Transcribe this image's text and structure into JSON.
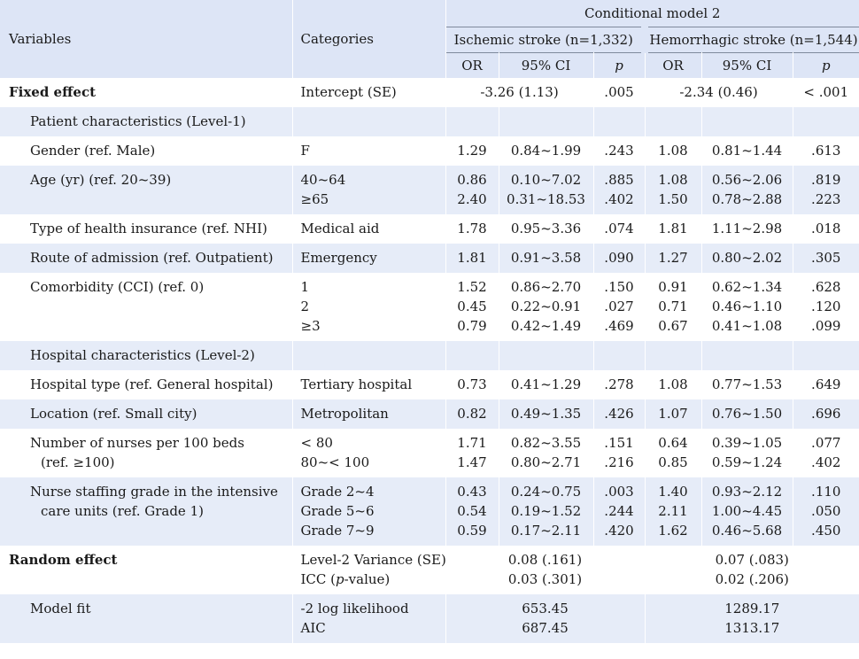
{
  "header": {
    "model_title": "Conditional model 2",
    "col_variables": "Variables",
    "col_categories": "Categories",
    "group_ischemic": "Ischemic stroke (n=1,332)",
    "group_hemorrhagic": "Hemorrhagic stroke (n=1,544)",
    "or": "OR",
    "ci": "95% CI",
    "p": "p"
  },
  "rows": [
    {
      "bg": "wht",
      "var": [
        "Fixed effect"
      ],
      "bold": true,
      "cat": [
        "Intercept (SE)"
      ],
      "is_merged": "-3.26 (1.13)",
      "is_p": [
        ".005"
      ],
      "hm_merged": "-2.34 (0.46)",
      "hm_p": [
        "< .001"
      ]
    },
    {
      "bg": "alt",
      "var": [
        "Patient characteristics (Level-1)"
      ],
      "indent": true,
      "cat": [],
      "is_or": [],
      "is_ci": [],
      "is_p": [],
      "hm_or": [],
      "hm_ci": [],
      "hm_p": []
    },
    {
      "bg": "wht",
      "var": [
        "Gender (ref. Male)"
      ],
      "indent": true,
      "cat": [
        "F"
      ],
      "is_or": [
        "1.29"
      ],
      "is_ci": [
        "0.84~1.99"
      ],
      "is_p": [
        ".243"
      ],
      "hm_or": [
        "1.08"
      ],
      "hm_ci": [
        "0.81~1.44"
      ],
      "hm_p": [
        ".613"
      ]
    },
    {
      "bg": "alt",
      "var": [
        "Age (yr) (ref. 20~39)"
      ],
      "indent": true,
      "cat": [
        "40~64",
        "≥65"
      ],
      "is_or": [
        "0.86",
        "2.40"
      ],
      "is_ci": [
        "0.10~7.02",
        "0.31~18.53"
      ],
      "is_p": [
        ".885",
        ".402"
      ],
      "hm_or": [
        "1.08",
        "1.50"
      ],
      "hm_ci": [
        "0.56~2.06",
        "0.78~2.88"
      ],
      "hm_p": [
        ".819",
        ".223"
      ]
    },
    {
      "bg": "wht",
      "var": [
        "Type of health insurance (ref. NHI)"
      ],
      "indent": true,
      "cat": [
        "Medical aid"
      ],
      "is_or": [
        "1.78"
      ],
      "is_ci": [
        "0.95~3.36"
      ],
      "is_p": [
        ".074"
      ],
      "hm_or": [
        "1.81"
      ],
      "hm_ci": [
        "1.11~2.98"
      ],
      "hm_p": [
        ".018"
      ]
    },
    {
      "bg": "alt",
      "var": [
        "Route of admission (ref. Outpatient)"
      ],
      "indent": true,
      "cat": [
        "Emergency"
      ],
      "is_or": [
        "1.81"
      ],
      "is_ci": [
        "0.91~3.58"
      ],
      "is_p": [
        ".090"
      ],
      "hm_or": [
        "1.27"
      ],
      "hm_ci": [
        "0.80~2.02"
      ],
      "hm_p": [
        ".305"
      ]
    },
    {
      "bg": "wht",
      "var": [
        "Comorbidity (CCI) (ref. 0)"
      ],
      "indent": true,
      "cat": [
        "1",
        "2",
        "≥3"
      ],
      "is_or": [
        "1.52",
        "0.45",
        "0.79"
      ],
      "is_ci": [
        "0.86~2.70",
        "0.22~0.91",
        "0.42~1.49"
      ],
      "is_p": [
        ".150",
        ".027",
        ".469"
      ],
      "hm_or": [
        "0.91",
        "0.71",
        "0.67"
      ],
      "hm_ci": [
        "0.62~1.34",
        "0.46~1.10",
        "0.41~1.08"
      ],
      "hm_p": [
        ".628",
        ".120",
        ".099"
      ]
    },
    {
      "bg": "alt",
      "var": [
        "Hospital characteristics (Level-2)"
      ],
      "indent": true,
      "cat": [],
      "is_or": [],
      "is_ci": [],
      "is_p": [],
      "hm_or": [],
      "hm_ci": [],
      "hm_p": []
    },
    {
      "bg": "wht",
      "var": [
        "Hospital type (ref. General hospital)"
      ],
      "indent": true,
      "cat": [
        "Tertiary hospital"
      ],
      "is_or": [
        "0.73"
      ],
      "is_ci": [
        "0.41~1.29"
      ],
      "is_p": [
        ".278"
      ],
      "hm_or": [
        "1.08"
      ],
      "hm_ci": [
        "0.77~1.53"
      ],
      "hm_p": [
        ".649"
      ]
    },
    {
      "bg": "alt",
      "var": [
        "Location (ref. Small city)"
      ],
      "indent": true,
      "cat": [
        "Metropolitan"
      ],
      "is_or": [
        "0.82"
      ],
      "is_ci": [
        "0.49~1.35"
      ],
      "is_p": [
        ".426"
      ],
      "hm_or": [
        "1.07"
      ],
      "hm_ci": [
        "0.76~1.50"
      ],
      "hm_p": [
        ".696"
      ]
    },
    {
      "bg": "wht",
      "var": [
        "Number of nurses per 100 beds",
        "(ref. ≥100)"
      ],
      "indent": true,
      "cat": [
        "< 80",
        "80~< 100"
      ],
      "is_or": [
        "1.71",
        "1.47"
      ],
      "is_ci": [
        "0.82~3.55",
        "0.80~2.71"
      ],
      "is_p": [
        ".151",
        ".216"
      ],
      "hm_or": [
        "0.64",
        "0.85"
      ],
      "hm_ci": [
        "0.39~1.05",
        "0.59~1.24"
      ],
      "hm_p": [
        ".077",
        ".402"
      ]
    },
    {
      "bg": "alt",
      "var": [
        "Nurse staffing grade in the intensive",
        "care units (ref. Grade 1)"
      ],
      "indent": true,
      "cat": [
        "Grade 2~4",
        "Grade 5~6",
        "Grade 7~9"
      ],
      "is_or": [
        "0.43",
        "0.54",
        "0.59"
      ],
      "is_ci": [
        "0.24~0.75",
        "0.19~1.52",
        "0.17~2.11"
      ],
      "is_p": [
        ".003",
        ".244",
        ".420"
      ],
      "hm_or": [
        "1.40",
        "2.11",
        "1.62"
      ],
      "hm_ci": [
        "0.93~2.12",
        "1.00~4.45",
        "0.46~5.68"
      ],
      "hm_p": [
        ".110",
        ".050",
        ".450"
      ]
    },
    {
      "bg": "wht",
      "var": [
        "Random effect"
      ],
      "bold": true,
      "cat": [
        "Level-2 Variance (SE)",
        "ICC (p-value)"
      ],
      "is_merged_lines": [
        "0.08 (.161)",
        "0.03 (.301)"
      ],
      "hm_merged_lines": [
        "0.07 (.083)",
        "0.02 (.206)"
      ]
    },
    {
      "bg": "alt",
      "var": [
        "Model fit"
      ],
      "indent": true,
      "cat": [
        "-2 log likelihood",
        "AIC"
      ],
      "is_merged_lines": [
        "653.45",
        "687.45"
      ],
      "hm_merged_lines": [
        "1289.17",
        "1313.17"
      ]
    }
  ]
}
